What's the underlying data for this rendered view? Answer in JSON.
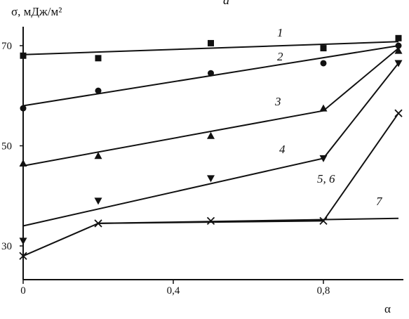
{
  "panel_label": "a",
  "chart_data": {
    "type": "line",
    "ylabel": "σ, мДж/м²",
    "xlabel": "α",
    "xlim": [
      0,
      1
    ],
    "ylim": [
      25,
      75
    ],
    "x_ticks": [
      {
        "value": 0,
        "label": "0"
      },
      {
        "value": 0.4,
        "label": "0,4"
      },
      {
        "value": 0.8,
        "label": "0,8"
      }
    ],
    "y_ticks": [
      {
        "value": 30,
        "label": "30"
      },
      {
        "value": 50,
        "label": "50"
      },
      {
        "value": 70,
        "label": "70"
      }
    ],
    "grid": false,
    "legend": "none",
    "series": [
      {
        "name": "1",
        "marker": "square",
        "points": [
          [
            0,
            68.0
          ],
          [
            0.2,
            67.5
          ],
          [
            0.5,
            70.5
          ],
          [
            0.8,
            69.5
          ],
          [
            1.0,
            71.5
          ]
        ],
        "fit": [
          [
            0,
            68.2
          ],
          [
            1.0,
            70.8
          ]
        ]
      },
      {
        "name": "2",
        "marker": "circle",
        "points": [
          [
            0,
            57.5
          ],
          [
            0.2,
            61.0
          ],
          [
            0.5,
            64.5
          ],
          [
            0.8,
            66.5
          ],
          [
            1.0,
            70.0
          ]
        ],
        "fit": [
          [
            0,
            58.0
          ],
          [
            1.0,
            70.0
          ]
        ]
      },
      {
        "name": "3",
        "marker": "triangle-up",
        "points": [
          [
            0,
            46.5
          ],
          [
            0.2,
            48.0
          ],
          [
            0.5,
            52.0
          ],
          [
            0.8,
            57.5
          ],
          [
            1.0,
            69.0
          ]
        ],
        "fit": [
          [
            0,
            46.0
          ],
          [
            0.8,
            57.0
          ],
          [
            1.0,
            69.5
          ]
        ]
      },
      {
        "name": "4",
        "marker": "triangle-down",
        "points": [
          [
            0,
            31.0
          ],
          [
            0.2,
            39.0
          ],
          [
            0.5,
            43.5
          ],
          [
            0.8,
            47.5
          ],
          [
            1.0,
            66.5
          ]
        ],
        "fit": [
          [
            0,
            34.0
          ],
          [
            0.8,
            47.5
          ],
          [
            1.0,
            66.5
          ]
        ]
      },
      {
        "name": "5, 6",
        "marker": "cross",
        "points": [
          [
            0,
            28.0
          ],
          [
            0.2,
            34.5
          ],
          [
            0.5,
            35.0
          ],
          [
            0.8,
            35.0
          ],
          [
            1.0,
            56.5
          ]
        ],
        "fit": [
          [
            0,
            28.0
          ],
          [
            0.2,
            34.5
          ],
          [
            0.8,
            35.0
          ],
          [
            1.0,
            56.5
          ]
        ]
      },
      {
        "name": "7",
        "marker": "none",
        "points": [],
        "fit": [
          [
            0.2,
            34.5
          ],
          [
            1.0,
            35.5
          ]
        ]
      }
    ]
  }
}
